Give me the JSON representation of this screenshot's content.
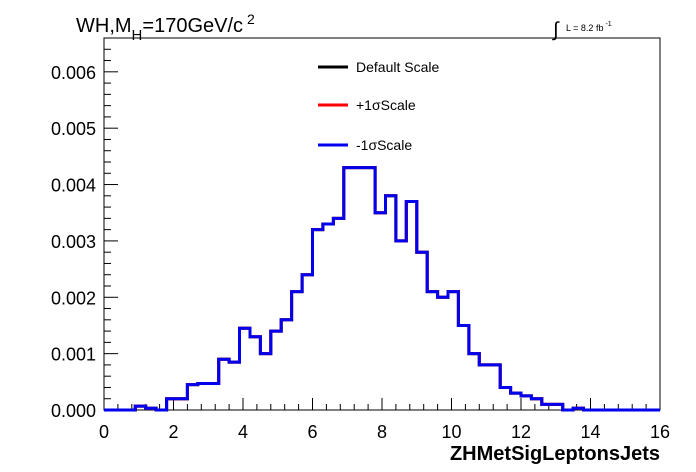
{
  "chart_data": {
    "type": "line",
    "title": "WH,M",
    "title_sub": "H",
    "title_rest": "=170GeV/c",
    "title_sup": "2",
    "lumi_label": "L = 8.2 fb",
    "lumi_sup": "-1",
    "lumi_integral": "∫",
    "xlabel": "ZHMetSigLeptonsJets",
    "ylabel": "",
    "xlim": [
      0,
      16
    ],
    "ylim": [
      0,
      0.0066
    ],
    "x_ticks": [
      0,
      2,
      4,
      6,
      8,
      10,
      12,
      14,
      16
    ],
    "x_tick_labels": [
      "0",
      "2",
      "4",
      "6",
      "8",
      "10",
      "12",
      "14",
      "16"
    ],
    "y_ticks": [
      0,
      0.001,
      0.002,
      0.003,
      0.004,
      0.005,
      0.006
    ],
    "y_tick_labels": [
      "0.000",
      "0.001",
      "0.002",
      "0.003",
      "0.004",
      "0.005",
      "0.006"
    ],
    "grid": false,
    "legend_position": "top-center",
    "bin_edges": [
      0,
      0.3,
      0.6,
      0.9,
      1.2,
      1.5,
      1.8,
      2.1,
      2.4,
      2.7,
      3.0,
      3.3,
      3.6,
      3.9,
      4.2,
      4.5,
      4.8,
      5.1,
      5.4,
      5.7,
      6.0,
      6.3,
      6.6,
      6.9,
      7.2,
      7.5,
      7.8,
      8.1,
      8.4,
      8.7,
      9.0,
      9.3,
      9.6,
      9.9,
      10.2,
      10.5,
      10.8,
      11.1,
      11.4,
      11.7,
      12.0,
      12.3,
      12.6,
      12.9,
      13.2,
      13.5,
      13.8,
      14.1,
      14.4,
      14.7,
      15.0,
      15.3,
      15.6,
      15.9,
      16.0
    ],
    "series": [
      {
        "name": "Default Scale",
        "color": "#000000",
        "values": [
          0,
          0,
          0,
          7e-05,
          3e-05,
          0,
          0.0002,
          0.0002,
          0.00045,
          0.00047,
          0.00047,
          0.0009,
          0.00085,
          0.00145,
          0.0013,
          0.001,
          0.0014,
          0.0016,
          0.0021,
          0.0024,
          0.0032,
          0.0033,
          0.0034,
          0.0043,
          0.0043,
          0.0043,
          0.0035,
          0.0038,
          0.003,
          0.0037,
          0.0028,
          0.0021,
          0.002,
          0.0021,
          0.0015,
          0.001,
          0.0008,
          0.0008,
          0.0004,
          0.0003,
          0.00025,
          0.0002,
          0.0001,
          0.0001,
          0,
          3e-05,
          0,
          0,
          0,
          0,
          0,
          0,
          0,
          0
        ]
      },
      {
        "name": "+1σScale",
        "color": "#ff0000",
        "values": [
          0,
          0,
          0,
          7e-05,
          3e-05,
          0,
          0.0002,
          0.0002,
          0.00045,
          0.00047,
          0.00047,
          0.0009,
          0.00085,
          0.00145,
          0.0013,
          0.001,
          0.0014,
          0.0016,
          0.0021,
          0.0024,
          0.0032,
          0.0033,
          0.0034,
          0.0043,
          0.0043,
          0.0043,
          0.0035,
          0.0038,
          0.003,
          0.0037,
          0.0028,
          0.0021,
          0.002,
          0.0021,
          0.0015,
          0.001,
          0.0008,
          0.0008,
          0.0004,
          0.0003,
          0.00025,
          0.0002,
          0.0001,
          0.0001,
          0,
          3e-05,
          0,
          0,
          0,
          0,
          0,
          0,
          0,
          0
        ]
      },
      {
        "name": "-1σScale",
        "color": "#0000ee",
        "values": [
          0,
          0,
          0,
          7e-05,
          3e-05,
          0,
          0.0002,
          0.0002,
          0.00045,
          0.00047,
          0.00047,
          0.0009,
          0.00085,
          0.00145,
          0.0013,
          0.001,
          0.0014,
          0.0016,
          0.0021,
          0.0024,
          0.0032,
          0.0033,
          0.0034,
          0.0043,
          0.0043,
          0.0043,
          0.0035,
          0.0038,
          0.003,
          0.0037,
          0.0028,
          0.0021,
          0.002,
          0.0021,
          0.0015,
          0.001,
          0.0008,
          0.0008,
          0.0004,
          0.0003,
          0.00025,
          0.0002,
          0.0001,
          0.0001,
          0,
          3e-05,
          0,
          0,
          0,
          0,
          0,
          0,
          0,
          0
        ]
      }
    ]
  }
}
